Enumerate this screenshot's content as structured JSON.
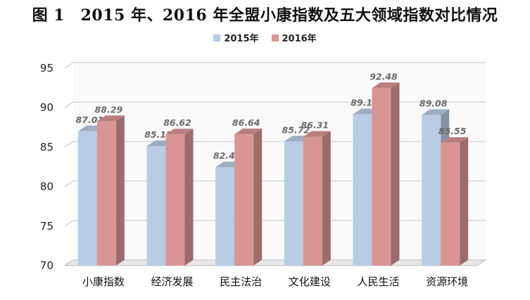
{
  "chart_data": {
    "type": "bar",
    "title": "图 1　2015 年、2016 年全盟小康指数及五大领域指数对比情况",
    "categories": [
      "小康指数",
      "经济发展",
      "民主法治",
      "文化建设",
      "人民生活",
      "资源环境"
    ],
    "series": [
      {
        "name": "2015年",
        "color": "#b8cce4",
        "values": [
          87.01,
          85.12,
          82.45,
          85.72,
          89.16,
          89.08
        ]
      },
      {
        "name": "2016年",
        "color": "#d99594",
        "values": [
          88.29,
          86.62,
          86.64,
          86.31,
          92.48,
          85.55
        ]
      }
    ],
    "data_labels": [
      [
        "87.01",
        "85.12",
        "82.45",
        "85.72",
        "89.16",
        "89.08"
      ],
      [
        "88.29",
        "86.62",
        "86.64",
        "86.31",
        "92.48",
        "85.55"
      ]
    ],
    "ylim": [
      70,
      95
    ],
    "yticks": [
      70,
      75,
      80,
      85,
      90,
      95
    ],
    "grid": true,
    "legend_position": "top-center",
    "style": "3d"
  }
}
